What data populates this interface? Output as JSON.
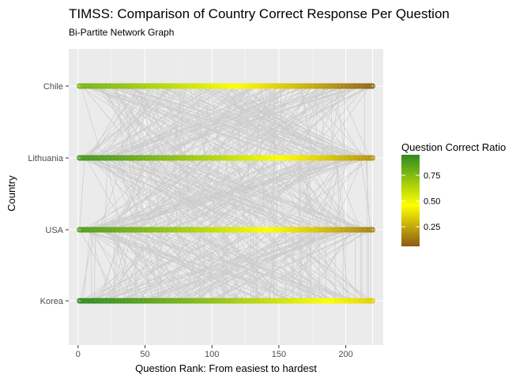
{
  "chart_data": {
    "type": "scatter",
    "subtype": "bipartite-network",
    "title": "TIMSS: Comparison of Country Correct Response Per Question",
    "subtitle": "Bi-Partite Network Graph",
    "xlabel": "Question Rank: From easiest to hardest",
    "ylabel": "Country",
    "xlim": [
      -7,
      228
    ],
    "x_ticks": [
      0,
      50,
      100,
      150,
      200
    ],
    "categories": [
      "Korea",
      "USA",
      "Lithuania",
      "Chile"
    ],
    "n_questions": 220,
    "grid": true,
    "legend": {
      "title": "Question Correct Ratio",
      "placement": "right",
      "range": [
        0.06,
        0.95
      ],
      "ticks": [
        0.25,
        0.5,
        0.75
      ],
      "tick_labels": [
        "0.25",
        "0.50",
        "0.75"
      ],
      "colors": {
        "low": "#8b5a14",
        "mid": "#ffff00",
        "high": "#2e8b20"
      }
    },
    "series": [
      {
        "name": "Chile",
        "ratio_easiest": 0.78,
        "ratio_hardest": 0.08
      },
      {
        "name": "Lithuania",
        "ratio_easiest": 0.9,
        "ratio_hardest": 0.2
      },
      {
        "name": "USA",
        "ratio_easiest": 0.87,
        "ratio_hardest": 0.16
      },
      {
        "name": "Korea",
        "ratio_easiest": 0.95,
        "ratio_hardest": 0.35
      }
    ],
    "edge_color": "#cccccc",
    "panel_background": "#ebebeb"
  }
}
